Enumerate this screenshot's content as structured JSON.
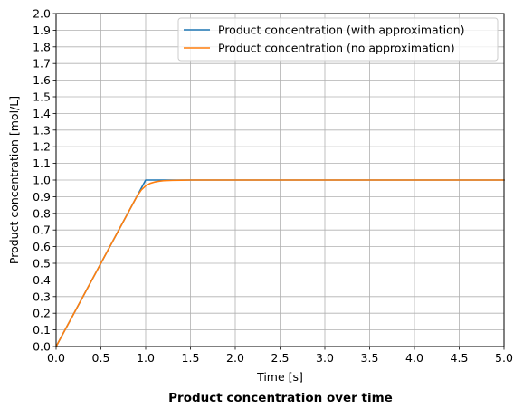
{
  "chart_data": {
    "type": "line",
    "title": "Product concentration over time",
    "xlabel": "Time [s]",
    "ylabel": "Product concentration [mol/L]",
    "xlim": [
      0.0,
      5.0
    ],
    "ylim": [
      0.0,
      2.0
    ],
    "xticks": [
      "0.0",
      "0.5",
      "1.0",
      "1.5",
      "2.0",
      "2.5",
      "3.0",
      "3.5",
      "4.0",
      "4.5",
      "5.0"
    ],
    "yticks": [
      "0.0",
      "0.1",
      "0.2",
      "0.3",
      "0.4",
      "0.5",
      "0.6",
      "0.7",
      "0.8",
      "0.9",
      "1.0",
      "1.1",
      "1.2",
      "1.3",
      "1.4",
      "1.5",
      "1.6",
      "1.7",
      "1.8",
      "1.9",
      "2.0"
    ],
    "grid": true,
    "legend_position": "top-right",
    "series": [
      {
        "name": "Product concentration (with approximation)",
        "color": "#1f77b4",
        "x": [
          0.0,
          0.25,
          0.5,
          0.75,
          1.0,
          1.5,
          2.0,
          2.5,
          3.0,
          3.5,
          4.0,
          4.5,
          5.0
        ],
        "y": [
          0.0,
          0.25,
          0.5,
          0.75,
          1.0,
          1.0,
          1.0,
          1.0,
          1.0,
          1.0,
          1.0,
          1.0,
          1.0
        ]
      },
      {
        "name": "Product concentration (no approximation)",
        "color": "#ff7f0e",
        "x": [
          0.0,
          0.25,
          0.5,
          0.75,
          0.9,
          0.95,
          1.0,
          1.05,
          1.1,
          1.15,
          1.2,
          1.3,
          1.4,
          1.5,
          2.0,
          2.5,
          3.0,
          3.5,
          4.0,
          4.5,
          5.0
        ],
        "y": [
          0.0,
          0.25,
          0.5,
          0.75,
          0.9,
          0.94,
          0.965,
          0.98,
          0.988,
          0.993,
          0.996,
          0.998,
          0.999,
          1.0,
          1.0,
          1.0,
          1.0,
          1.0,
          1.0,
          1.0,
          1.0
        ]
      }
    ]
  }
}
